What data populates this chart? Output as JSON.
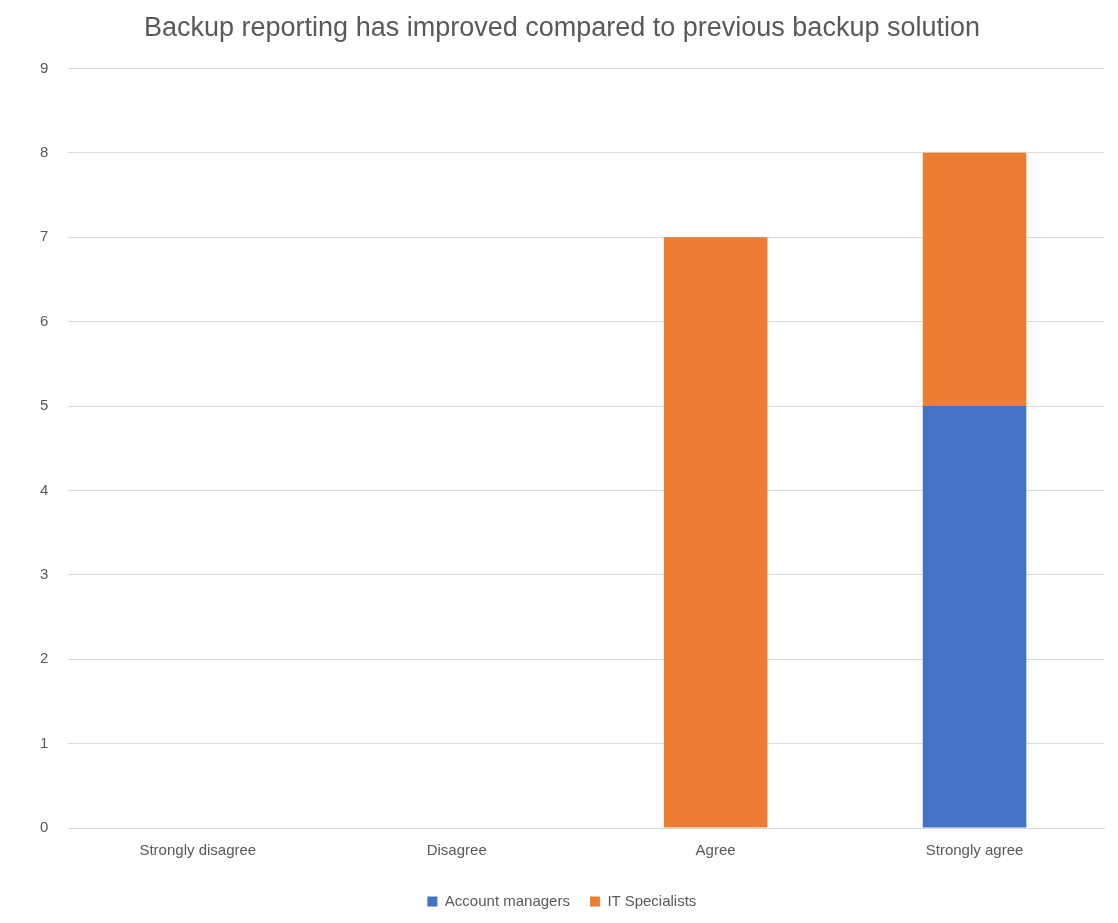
{
  "chart_data": {
    "type": "bar",
    "title": "Backup reporting has improved compared to previous backup solution",
    "categories": [
      "Strongly disagree",
      "Disagree",
      "Agree",
      "Strongly agree"
    ],
    "series": [
      {
        "name": "Account managers",
        "color": "#4472c4",
        "values": [
          0,
          0,
          0,
          5
        ]
      },
      {
        "name": "IT Specialists",
        "color": "#ed7d31",
        "values": [
          0,
          0,
          7,
          3
        ]
      }
    ],
    "stacked": true,
    "ylim": [
      0,
      9
    ],
    "yticks": [
      0,
      1,
      2,
      3,
      4,
      5,
      6,
      7,
      8,
      9
    ],
    "grid": "y",
    "legend": "bottom"
  }
}
